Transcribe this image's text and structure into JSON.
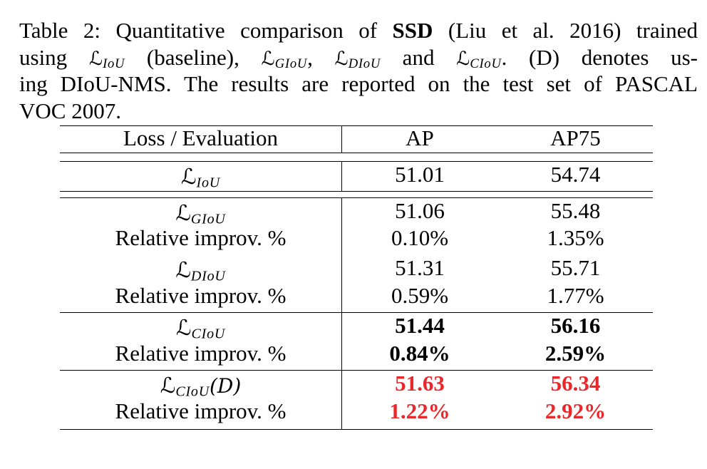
{
  "caption": {
    "prefix": "Table 2: Quantitative comparison of ",
    "model": "SSD",
    "cite": " (Liu et al. 2016) trained",
    "line2_using": "using ",
    "line2_baseline": " (baseline), ",
    "line2_and": " and ",
    "line2_tail": ". (D) denotes us-",
    "line3": "ing DIoU-NMS. The results are reported on the test set of PASCAL",
    "line4": "VOC 2007."
  },
  "loss_symbol": "ℒ",
  "table": {
    "headers": [
      "Loss / Evaluation",
      "AP",
      "AP75"
    ],
    "baseline": {
      "loss": "IoU",
      "ap": "51.01",
      "ap75": "54.74"
    },
    "groups": [
      {
        "loss": "GIoU",
        "ap": "51.06",
        "ap75": "55.48",
        "rel_label": "Relative improv. %",
        "rel_ap": "0.10%",
        "rel_ap75": "1.35%"
      },
      {
        "loss": "DIoU",
        "ap": "51.31",
        "ap75": "55.71",
        "rel_label": "Relative improv. %",
        "rel_ap": "0.59%",
        "rel_ap75": "1.77%"
      },
      {
        "loss": "CIoU",
        "ap": "51.44",
        "ap75": "56.16",
        "rel_label": "Relative improv. %",
        "rel_ap": "0.84%",
        "rel_ap75": "2.59%"
      },
      {
        "loss": "CIoU",
        "loss_suffix": "(D)",
        "ap": "51.63",
        "ap75": "56.34",
        "rel_label": "Relative improv. %",
        "rel_ap": "1.22%",
        "rel_ap75": "2.92%"
      }
    ]
  },
  "colors": {
    "highlight_red": "#e8282a",
    "text": "#000000"
  }
}
